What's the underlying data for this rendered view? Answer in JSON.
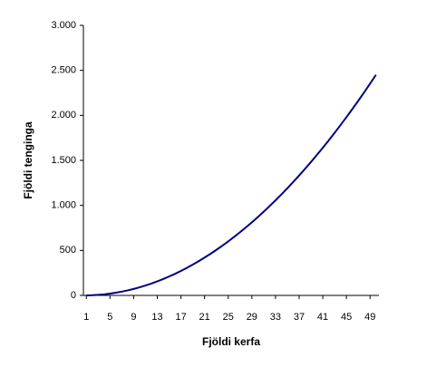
{
  "chart_data": {
    "type": "line",
    "xlabel": "Fjöldi kerfa",
    "ylabel": "Fjöldi tenginga",
    "x": [
      1,
      2,
      3,
      4,
      5,
      6,
      7,
      8,
      9,
      10,
      11,
      12,
      13,
      14,
      15,
      16,
      17,
      18,
      19,
      20,
      21,
      22,
      23,
      24,
      25,
      26,
      27,
      28,
      29,
      30,
      31,
      32,
      33,
      34,
      35,
      36,
      37,
      38,
      39,
      40,
      41,
      42,
      43,
      44,
      45,
      46,
      47,
      48,
      49,
      50
    ],
    "series": [
      {
        "name": "Fjöldi tenginga",
        "color": "#000080",
        "values": [
          0,
          2,
          6,
          12,
          20,
          30,
          42,
          56,
          72,
          90,
          110,
          132,
          156,
          182,
          210,
          240,
          272,
          306,
          342,
          380,
          420,
          462,
          506,
          552,
          600,
          650,
          702,
          756,
          812,
          870,
          930,
          992,
          1056,
          1122,
          1190,
          1260,
          1332,
          1406,
          1482,
          1560,
          1640,
          1722,
          1806,
          1892,
          1980,
          2070,
          2162,
          2256,
          2352,
          2450
        ]
      }
    ],
    "xlim": [
      0.5,
      50.5
    ],
    "xticks": [
      1,
      5,
      9,
      13,
      17,
      21,
      25,
      29,
      33,
      37,
      41,
      45,
      49
    ],
    "ylim": [
      0,
      3000
    ],
    "yticks": [
      0,
      500,
      {
        "value": 1000,
        "label": "1.000"
      },
      {
        "value": 1500,
        "label": "1.500"
      },
      {
        "value": 2000,
        "label": "2.000"
      },
      {
        "value": 2500,
        "label": "2.500"
      },
      {
        "value": 3000,
        "label": "3.000"
      }
    ],
    "grid": false
  }
}
